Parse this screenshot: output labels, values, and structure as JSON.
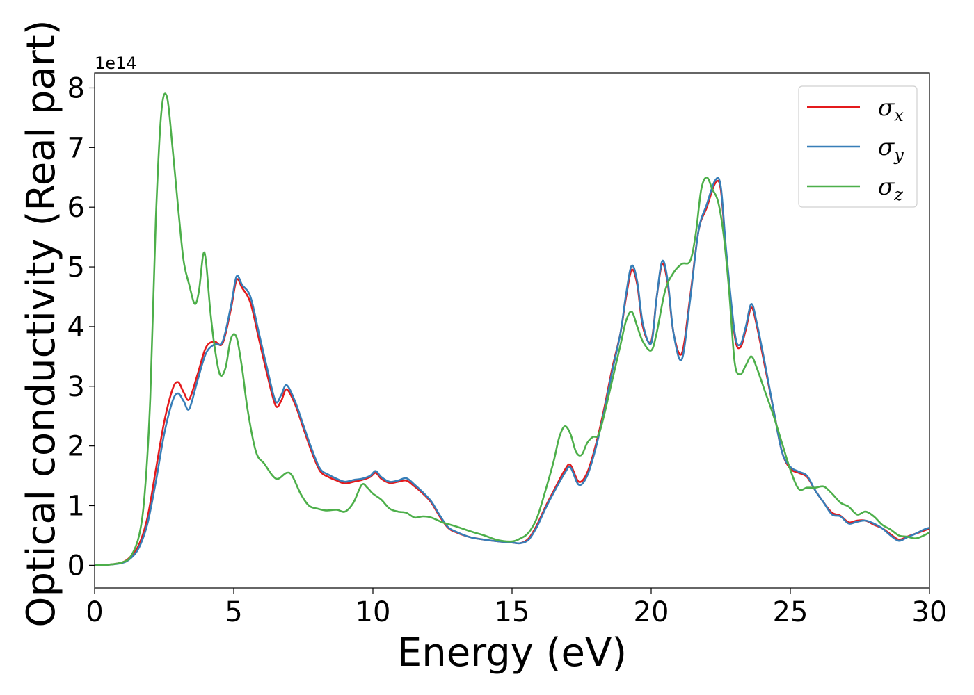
{
  "chart_data": {
    "type": "line",
    "title": "",
    "xlabel": "Energy (eV)",
    "ylabel": "Optical conductivity (Real part)",
    "y_offset_label": "1e14",
    "xlim": [
      0,
      30
    ],
    "ylim": [
      -0.38,
      8.25
    ],
    "xticks": [
      0,
      5,
      10,
      15,
      20,
      25,
      30
    ],
    "yticks": [
      0,
      1,
      2,
      3,
      4,
      5,
      6,
      7,
      8
    ],
    "grid": false,
    "legend_position": "top-right",
    "series": [
      {
        "name": "σx",
        "symbol": "σ",
        "subscript": "x",
        "color": "#e41a1c",
        "x": [
          0,
          0.5,
          1,
          1.3,
          1.6,
          1.9,
          2.2,
          2.5,
          2.8,
          3.0,
          3.2,
          3.4,
          3.7,
          4.0,
          4.3,
          4.6,
          4.9,
          5.1,
          5.3,
          5.6,
          5.9,
          6.2,
          6.5,
          6.7,
          6.9,
          7.2,
          7.5,
          7.8,
          8.1,
          8.4,
          8.7,
          9.0,
          9.3,
          9.6,
          9.9,
          10.1,
          10.3,
          10.6,
          10.9,
          11.2,
          11.5,
          11.8,
          12.1,
          12.4,
          12.7,
          13.0,
          13.5,
          14.0,
          14.5,
          15.0,
          15.3,
          15.6,
          15.9,
          16.2,
          16.5,
          16.9,
          17.1,
          17.4,
          17.7,
          18.0,
          18.3,
          18.6,
          18.9,
          19.1,
          19.3,
          19.5,
          19.7,
          20.0,
          20.2,
          20.4,
          20.6,
          20.8,
          21.1,
          21.4,
          21.7,
          22.0,
          22.3,
          22.5,
          22.7,
          23.0,
          23.2,
          23.4,
          23.6,
          23.8,
          24.1,
          24.4,
          24.7,
          25.0,
          25.3,
          25.6,
          25.9,
          26.2,
          26.5,
          26.8,
          27.1,
          27.4,
          27.7,
          28.0,
          28.3,
          28.6,
          28.9,
          29.2,
          29.5,
          29.8,
          30.0
        ],
        "values": [
          0.0,
          0.01,
          0.05,
          0.15,
          0.35,
          0.8,
          1.6,
          2.4,
          2.95,
          3.07,
          2.9,
          2.78,
          3.2,
          3.65,
          3.75,
          3.72,
          4.3,
          4.78,
          4.65,
          4.4,
          3.8,
          3.2,
          2.68,
          2.75,
          2.95,
          2.7,
          2.3,
          1.9,
          1.58,
          1.48,
          1.42,
          1.37,
          1.4,
          1.43,
          1.48,
          1.55,
          1.45,
          1.38,
          1.4,
          1.42,
          1.32,
          1.2,
          1.05,
          0.82,
          0.63,
          0.55,
          0.47,
          0.43,
          0.4,
          0.38,
          0.37,
          0.45,
          0.68,
          0.98,
          1.25,
          1.6,
          1.68,
          1.4,
          1.55,
          2.0,
          2.6,
          3.3,
          3.9,
          4.5,
          4.95,
          4.7,
          4.0,
          3.75,
          4.5,
          5.05,
          4.7,
          3.9,
          3.55,
          4.5,
          5.6,
          6.0,
          6.4,
          6.3,
          5.2,
          3.85,
          3.65,
          3.95,
          4.32,
          4.0,
          3.3,
          2.6,
          1.9,
          1.62,
          1.55,
          1.48,
          1.25,
          1.05,
          0.88,
          0.83,
          0.72,
          0.75,
          0.75,
          0.68,
          0.62,
          0.52,
          0.43,
          0.48,
          0.53,
          0.58,
          0.62
        ]
      },
      {
        "name": "σy",
        "symbol": "σ",
        "subscript": "y",
        "color": "#377eb8",
        "x": [
          0,
          0.5,
          1,
          1.3,
          1.6,
          1.9,
          2.2,
          2.5,
          2.8,
          3.0,
          3.2,
          3.4,
          3.7,
          4.0,
          4.3,
          4.6,
          4.9,
          5.1,
          5.3,
          5.6,
          5.9,
          6.2,
          6.5,
          6.7,
          6.9,
          7.2,
          7.5,
          7.8,
          8.1,
          8.4,
          8.7,
          9.0,
          9.3,
          9.6,
          9.9,
          10.1,
          10.3,
          10.6,
          10.9,
          11.2,
          11.5,
          11.8,
          12.1,
          12.4,
          12.7,
          13.0,
          13.5,
          14.0,
          14.5,
          15.0,
          15.3,
          15.6,
          15.9,
          16.2,
          16.5,
          16.9,
          17.1,
          17.4,
          17.7,
          18.0,
          18.3,
          18.6,
          18.9,
          19.1,
          19.3,
          19.5,
          19.7,
          20.0,
          20.2,
          20.4,
          20.6,
          20.8,
          21.1,
          21.4,
          21.7,
          22.0,
          22.3,
          22.5,
          22.7,
          23.0,
          23.2,
          23.4,
          23.6,
          23.8,
          24.1,
          24.4,
          24.7,
          25.0,
          25.3,
          25.6,
          25.9,
          26.2,
          26.5,
          26.8,
          27.1,
          27.4,
          27.7,
          28.0,
          28.3,
          28.6,
          28.9,
          29.2,
          29.5,
          29.8,
          30.0
        ],
        "values": [
          0.0,
          0.01,
          0.04,
          0.12,
          0.3,
          0.7,
          1.4,
          2.2,
          2.75,
          2.88,
          2.75,
          2.62,
          3.1,
          3.55,
          3.7,
          3.75,
          4.35,
          4.84,
          4.7,
          4.5,
          3.9,
          3.3,
          2.75,
          2.85,
          3.02,
          2.75,
          2.35,
          1.95,
          1.62,
          1.52,
          1.45,
          1.4,
          1.43,
          1.45,
          1.5,
          1.58,
          1.48,
          1.4,
          1.42,
          1.46,
          1.35,
          1.22,
          1.07,
          0.84,
          0.64,
          0.56,
          0.47,
          0.43,
          0.4,
          0.38,
          0.37,
          0.43,
          0.65,
          0.95,
          1.22,
          1.55,
          1.64,
          1.35,
          1.5,
          1.95,
          2.55,
          3.25,
          3.9,
          4.55,
          5.02,
          4.75,
          4.05,
          3.72,
          4.5,
          5.1,
          4.75,
          3.9,
          3.45,
          4.45,
          5.6,
          6.05,
          6.45,
          6.35,
          5.25,
          3.9,
          3.7,
          4.0,
          4.38,
          4.05,
          3.35,
          2.6,
          1.9,
          1.65,
          1.57,
          1.5,
          1.25,
          1.05,
          0.85,
          0.82,
          0.7,
          0.73,
          0.75,
          0.7,
          0.62,
          0.5,
          0.41,
          0.47,
          0.53,
          0.6,
          0.63
        ]
      },
      {
        "name": "σz",
        "symbol": "σ",
        "subscript": "z",
        "color": "#4daf4a",
        "x": [
          0,
          0.5,
          1,
          1.3,
          1.6,
          1.8,
          2.0,
          2.2,
          2.4,
          2.6,
          2.8,
          3.0,
          3.2,
          3.4,
          3.6,
          3.75,
          3.9,
          4.0,
          4.15,
          4.3,
          4.5,
          4.7,
          4.9,
          5.1,
          5.3,
          5.5,
          5.8,
          6.1,
          6.4,
          6.6,
          6.9,
          7.1,
          7.4,
          7.7,
          8.0,
          8.3,
          8.7,
          9.0,
          9.3,
          9.6,
          9.8,
          10.0,
          10.3,
          10.6,
          10.9,
          11.2,
          11.5,
          11.8,
          12.1,
          12.5,
          13.0,
          13.5,
          14.0,
          14.5,
          15.0,
          15.3,
          15.6,
          15.9,
          16.2,
          16.5,
          16.7,
          16.9,
          17.1,
          17.3,
          17.5,
          17.7,
          17.9,
          18.1,
          18.3,
          18.6,
          18.9,
          19.1,
          19.3,
          19.5,
          19.7,
          20.0,
          20.2,
          20.5,
          20.8,
          21.1,
          21.4,
          21.6,
          21.8,
          22.0,
          22.2,
          22.4,
          22.6,
          22.8,
          23.0,
          23.2,
          23.4,
          23.6,
          23.8,
          24.1,
          24.4,
          24.7,
          25.0,
          25.3,
          25.6,
          25.9,
          26.2,
          26.5,
          26.8,
          27.1,
          27.4,
          27.7,
          28.0,
          28.3,
          28.6,
          28.9,
          29.2,
          29.5,
          29.8,
          30.0
        ],
        "values": [
          0.0,
          0.01,
          0.05,
          0.15,
          0.5,
          1.2,
          2.8,
          5.8,
          7.6,
          7.85,
          7.0,
          6.0,
          5.1,
          4.7,
          4.38,
          4.6,
          5.2,
          5.1,
          4.3,
          3.7,
          3.2,
          3.3,
          3.8,
          3.82,
          3.3,
          2.6,
          1.9,
          1.7,
          1.5,
          1.45,
          1.55,
          1.5,
          1.2,
          1.0,
          0.95,
          0.92,
          0.93,
          0.9,
          1.05,
          1.35,
          1.3,
          1.2,
          1.1,
          0.95,
          0.9,
          0.88,
          0.8,
          0.82,
          0.8,
          0.72,
          0.65,
          0.57,
          0.5,
          0.42,
          0.4,
          0.45,
          0.55,
          0.8,
          1.25,
          1.75,
          2.15,
          2.33,
          2.2,
          1.9,
          1.85,
          2.05,
          2.15,
          2.18,
          2.5,
          3.1,
          3.7,
          4.1,
          4.25,
          4.0,
          3.75,
          3.6,
          3.9,
          4.6,
          4.9,
          5.05,
          5.1,
          5.55,
          6.3,
          6.5,
          6.3,
          6.1,
          5.55,
          4.6,
          3.4,
          3.2,
          3.35,
          3.5,
          3.3,
          2.9,
          2.5,
          2.05,
          1.6,
          1.28,
          1.3,
          1.3,
          1.32,
          1.2,
          1.05,
          0.98,
          0.85,
          0.9,
          0.82,
          0.68,
          0.6,
          0.5,
          0.48,
          0.45,
          0.5,
          0.55
        ]
      }
    ]
  }
}
